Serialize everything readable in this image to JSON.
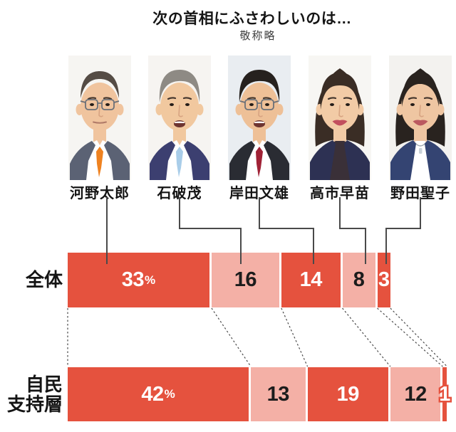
{
  "title": "次の首相にふさわしいのは…",
  "subtitle": "敬称略",
  "candidates": [
    {
      "name": "河野太郎",
      "avatar": {
        "style": "receding",
        "hair": "#554c45",
        "skin": "#f0c49e",
        "glasses": true,
        "mouth": "closed",
        "suit": "#5b6274",
        "shirt": "#ffffff",
        "tie": "#ef8220",
        "bg": "#f6f5f2"
      }
    },
    {
      "name": "石破茂",
      "avatar": {
        "style": "side-part",
        "hair": "#8e8a84",
        "skin": "#f1c89f",
        "glasses": false,
        "mouth": "open",
        "suit": "#3c3f70",
        "shirt": "#ffffff",
        "tie": "#a9cde9",
        "bg": "#f6f4f1"
      }
    },
    {
      "name": "岸田文雄",
      "avatar": {
        "style": "side-part",
        "hair": "#26211e",
        "skin": "#eec097",
        "glasses": true,
        "mouth": "open",
        "suit": "#2a2c33",
        "shirt": "#ffffff",
        "tie": "#a02236",
        "bg": "#e9edf1"
      }
    },
    {
      "name": "高市早苗",
      "avatar": {
        "style": "bob-bangs",
        "hair": "#3a2d25",
        "skin": "#f2cba6",
        "glasses": false,
        "mouth": "smile",
        "lip": "#c24f5e",
        "suit": "#2d3153",
        "shirt": "#3a3038",
        "bg": "#f7f6f3"
      }
    },
    {
      "name": "野田聖子",
      "avatar": {
        "style": "bob",
        "hair": "#29231f",
        "skin": "#efc6a2",
        "glasses": false,
        "mouth": "smile",
        "lip": "#bb5a60",
        "suit": "#344472",
        "shirt": "#ffffff",
        "necklace": true,
        "bg": "#f3f2ef"
      }
    }
  ],
  "chart_data": {
    "type": "bar",
    "orientation": "horizontal",
    "stacked": true,
    "value_unit": "percent",
    "percent_mark": "%",
    "categories": [
      "河野太郎",
      "石破茂",
      "岸田文雄",
      "高市早苗",
      "野田聖子"
    ],
    "series": [
      {
        "name": "全体",
        "label_lines": [
          "全体"
        ],
        "values": [
          33,
          16,
          14,
          8,
          3
        ],
        "value_labels": [
          "33%",
          "16",
          "14",
          "8",
          "3"
        ]
      },
      {
        "name": "自民支持層",
        "label_lines": [
          "自民",
          "支持層"
        ],
        "values": [
          42,
          13,
          19,
          12,
          1
        ],
        "value_labels": [
          "42%",
          "13",
          "19",
          "12",
          "1"
        ]
      }
    ],
    "colors": {
      "bar_dark": "#e5523e",
      "bar_light": "#f4b0a6",
      "label_on_dark": "#ffffff",
      "label_on_light": "#1c1c1c",
      "outlined_label_fill": "#ffffff",
      "outlined_label_stroke": "#e5523e",
      "leader_line": "#4a4a4a",
      "dashed_guide": "#4a4a4a"
    },
    "legend": false,
    "gridlines": false
  }
}
